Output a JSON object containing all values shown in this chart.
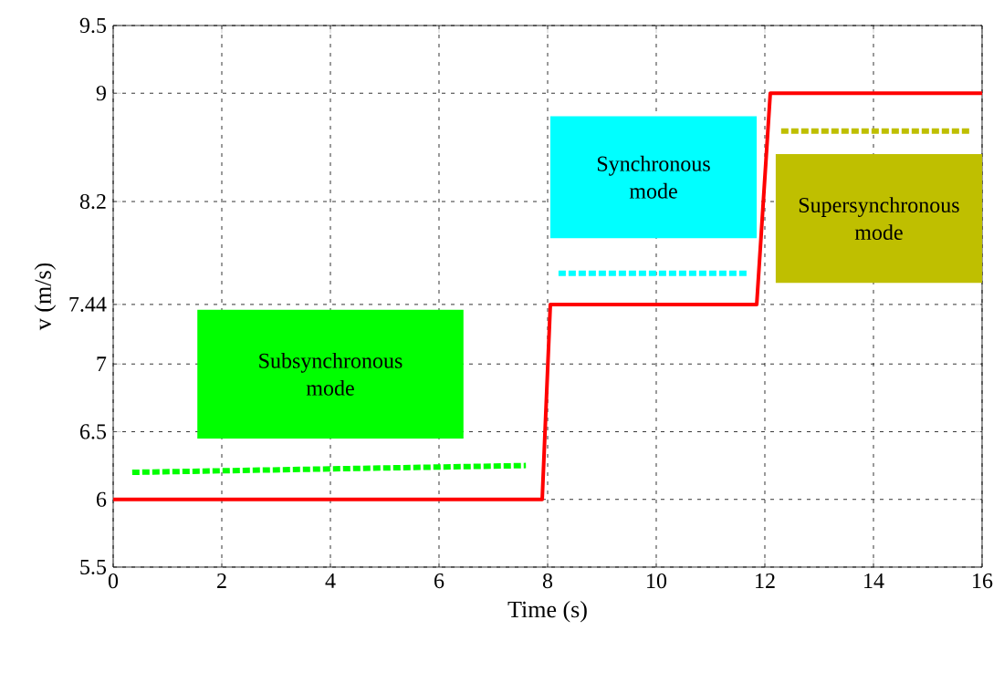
{
  "chart_data": {
    "type": "line",
    "xlabel": "Time (s)",
    "ylabel": "v (m/s)",
    "xlim": [
      0,
      16
    ],
    "ylim": [
      5.5,
      9.5
    ],
    "xticks": [
      0,
      2,
      4,
      6,
      8,
      10,
      12,
      14,
      16
    ],
    "yticks": [
      5.5,
      6,
      6.5,
      7,
      7.44,
      8.2,
      9,
      9.5
    ],
    "grid": true,
    "line_style": "solid",
    "series": [
      {
        "color": "#ff0000",
        "x": [
          0,
          7.9,
          8.05,
          11.85,
          12.1,
          16
        ],
        "values": [
          6,
          6,
          7.44,
          7.44,
          9,
          9
        ]
      },
      {
        "color": "#00ff00",
        "line_style": "dashed",
        "x": [
          0.35,
          7.6
        ],
        "values": [
          6.2,
          6.25
        ]
      },
      {
        "color": "#00ffff",
        "line_style": "dashed",
        "x": [
          8.2,
          11.7
        ],
        "values": [
          7.67,
          7.67
        ]
      },
      {
        "color": "#bfbf00",
        "line_style": "dashed",
        "x": [
          12.3,
          15.8
        ],
        "values": [
          8.72,
          8.72
        ]
      }
    ],
    "annotations": [
      "Subsynchronous mode",
      "Synchronous mode",
      "Supersynchronous mode"
    ]
  }
}
